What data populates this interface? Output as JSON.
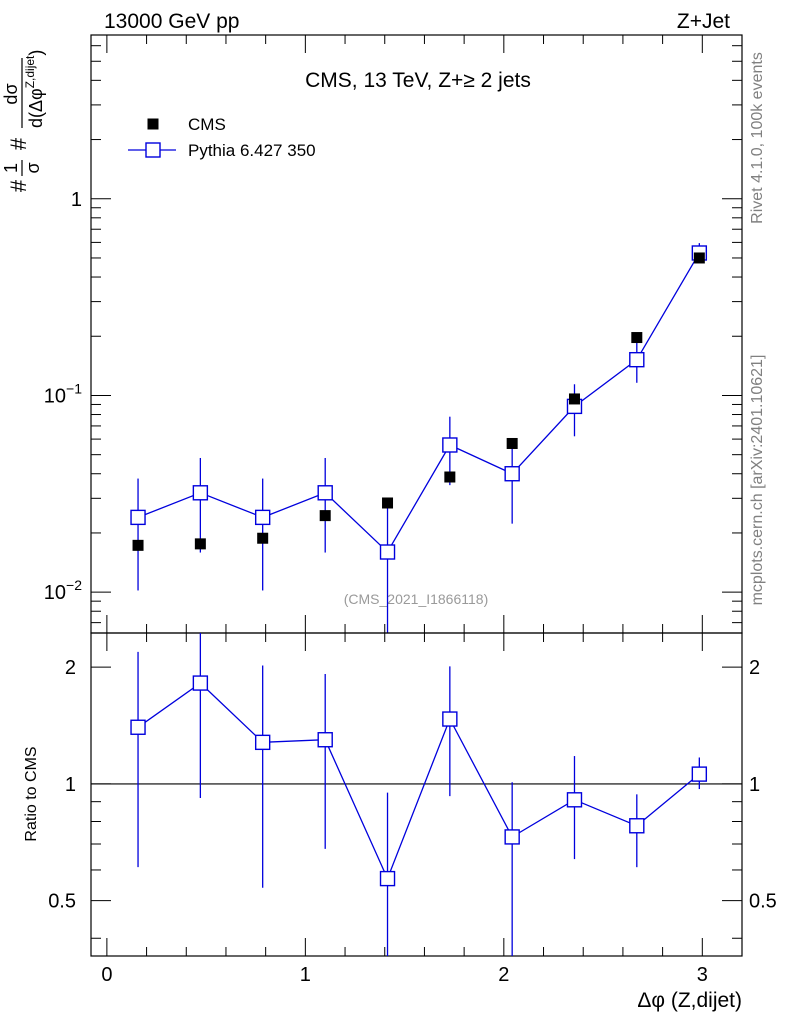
{
  "header": {
    "left": "13000 GeV pp",
    "right": "Z+Jet"
  },
  "side_labels": {
    "top": "Rivet 4.1.0,  100k events",
    "bottom": "mcplots.cern.ch [arXiv:2401.10621]"
  },
  "chart_data": [
    {
      "type": "scatter",
      "title": "CMS, 13 TeV, Z+≥ 2 jets",
      "watermark": "(CMS_2021_I1866118)",
      "ylabel": {
        "prefix": "#",
        "sigma_fraction": [
          "1",
          "σ"
        ],
        "mid": "#",
        "fraction": [
          "dσ",
          "d(Δφ",
          "Z,dijet",
          ")"
        ]
      },
      "yscale": "log",
      "xlim": [
        -0.08,
        3.2
      ],
      "ylim": [
        0.0062,
        6.8
      ],
      "y_ticks": [
        {
          "value": 1,
          "base": "1",
          "exp": ""
        },
        {
          "value": 0.1,
          "base": "10",
          "exp": "−1"
        },
        {
          "value": 0.01,
          "base": "10",
          "exp": "−2"
        }
      ],
      "legend": {
        "placement": "top-left"
      },
      "series": [
        {
          "name": "CMS",
          "marker": "filled-square",
          "color": "#000000",
          "x": [
            0.157,
            0.471,
            0.785,
            1.1,
            1.414,
            1.728,
            2.042,
            2.356,
            2.67,
            2.985
          ],
          "y": [
            0.0173,
            0.0176,
            0.0188,
            0.0245,
            0.0284,
            0.0385,
            0.057,
            0.096,
            0.197,
            0.5
          ],
          "yerr_low": [
            0.0007,
            0.0007,
            0.0007,
            0.0009,
            0.001,
            0.0015,
            0.002,
            0.004,
            0.008,
            0.02
          ],
          "yerr_high": [
            0.0007,
            0.0007,
            0.0007,
            0.0009,
            0.001,
            0.0015,
            0.002,
            0.004,
            0.008,
            0.02
          ]
        },
        {
          "name": "Pythia 6.427 350",
          "marker": "open-square",
          "color": "#0000dd",
          "line": true,
          "x": [
            0.157,
            0.471,
            0.785,
            1.1,
            1.414,
            1.728,
            2.042,
            2.356,
            2.67,
            2.985
          ],
          "y": [
            0.024,
            0.032,
            0.024,
            0.032,
            0.016,
            0.056,
            0.04,
            0.088,
            0.152,
            0.53
          ],
          "yerr_low": [
            0.0138,
            0.0161,
            0.0138,
            0.0161,
            0.011,
            0.021,
            0.0177,
            0.026,
            0.036,
            0.04
          ],
          "yerr_high": [
            0.0138,
            0.0161,
            0.0138,
            0.0161,
            0.0114,
            0.022,
            0.0177,
            0.026,
            0.036,
            0.065
          ]
        }
      ]
    },
    {
      "type": "scatter",
      "ylabel": "Ratio to CMS",
      "xlabel": "Δφ (Z,dijet)",
      "yscale": "log",
      "xlim": [
        -0.08,
        3.2
      ],
      "ylim": [
        0.36,
        2.45
      ],
      "x_ticks": [
        "0",
        "1",
        "2",
        "3"
      ],
      "y_ticks": [
        {
          "value": 0.5,
          "label": "0.5"
        },
        {
          "value": 1,
          "label": "1"
        },
        {
          "value": 2,
          "label": "2"
        }
      ],
      "reference_line": 1,
      "series": [
        {
          "name": "Pythia 6.427 350",
          "marker": "open-square",
          "color": "#0000dd",
          "line": true,
          "x": [
            0.157,
            0.471,
            0.785,
            1.1,
            1.414,
            1.728,
            2.042,
            2.356,
            2.67,
            2.985
          ],
          "y": [
            1.4,
            1.82,
            1.28,
            1.3,
            0.57,
            1.47,
            0.73,
            0.91,
            0.78,
            1.06
          ],
          "yerr_low": [
            0.79,
            0.9,
            0.74,
            0.62,
            0.35,
            0.54,
            0.42,
            0.27,
            0.17,
            0.09
          ],
          "yerr_high": [
            0.79,
            0.9,
            0.74,
            0.62,
            0.38,
            0.54,
            0.28,
            0.27,
            0.16,
            0.11
          ]
        }
      ]
    }
  ]
}
